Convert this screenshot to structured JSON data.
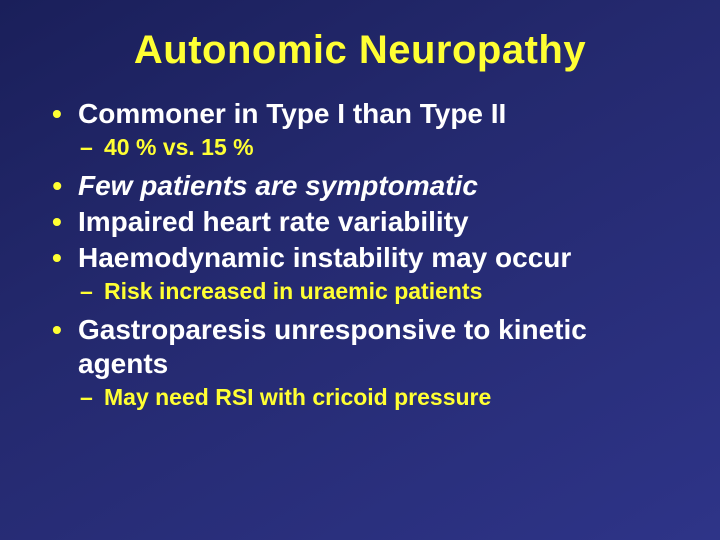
{
  "colors": {
    "background_gradient_start": "#1a1f5a",
    "background_gradient_mid": "#24296e",
    "background_gradient_end": "#2e3488",
    "title_color": "#ffff33",
    "body_text_color": "#ffffff",
    "bullet_color": "#ffff33",
    "subbullet_text_color": "#ffff33"
  },
  "typography": {
    "title_fontsize": 40,
    "body_fontsize": 28,
    "sub_fontsize": 23,
    "font_family": "Arial",
    "title_weight": 700,
    "body_weight": 700
  },
  "slide": {
    "title": "Autonomic Neuropathy",
    "bullets": [
      {
        "text": "Commoner in Type I than Type II",
        "italic": false,
        "sub": [
          {
            "text": "40 % vs. 15 %"
          }
        ]
      },
      {
        "text": "Few patients are symptomatic",
        "italic": true,
        "sub": []
      },
      {
        "text": "Impaired heart rate variability",
        "italic": false,
        "sub": []
      },
      {
        "text": "Haemodynamic instability may occur",
        "italic": false,
        "sub": [
          {
            "text": "Risk increased in uraemic patients"
          }
        ]
      },
      {
        "text": "Gastroparesis unresponsive to kinetic agents",
        "italic": false,
        "sub": [
          {
            "text": "May need RSI with cricoid pressure"
          }
        ]
      }
    ]
  }
}
